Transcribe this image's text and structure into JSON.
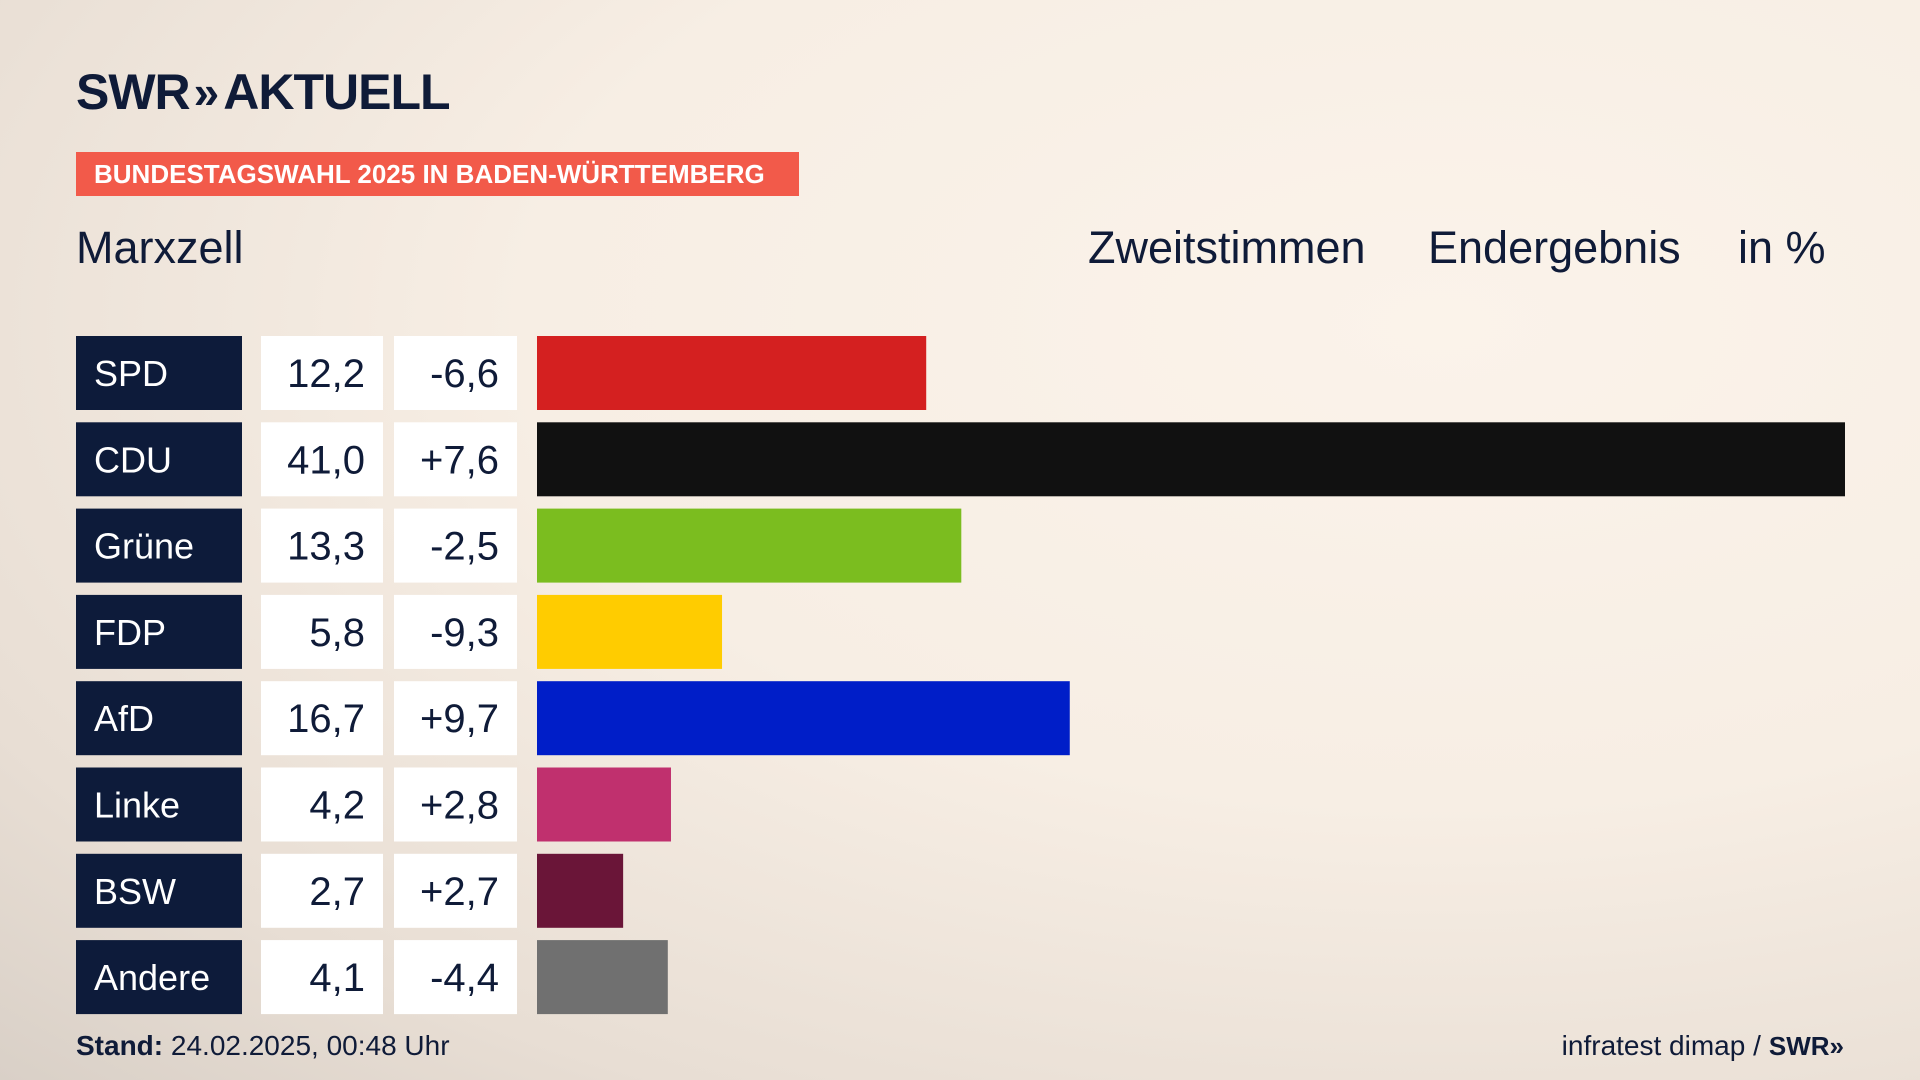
{
  "brand": {
    "name": "SWR",
    "chevrons": "»",
    "suffix": "AKTUELL"
  },
  "banner": "BUNDESTAGSWAHL 2025 IN BADEN-WÜRTTEMBERG",
  "place": "Marxzell",
  "header": {
    "vote_type": "Zweitstimmen",
    "status": "Endergebnis",
    "unit": "in %"
  },
  "footer": {
    "stand_label": "Stand:",
    "stand_value": "24.02.2025, 00:48 Uhr",
    "source": "infratest dimap /",
    "source_brand": "SWR»"
  },
  "colors": {
    "label_bg": "#0d1b3a",
    "banner": "#f25a4a"
  },
  "chart_data": {
    "type": "bar",
    "orientation": "horizontal",
    "categories": [
      "SPD",
      "CDU",
      "Grüne",
      "FDP",
      "AfD",
      "Linke",
      "BSW",
      "Andere"
    ],
    "values": [
      12.2,
      41.0,
      13.3,
      5.8,
      16.7,
      4.2,
      2.7,
      4.1
    ],
    "value_labels": [
      "12,2",
      "41,0",
      "13,3",
      "5,8",
      "16,7",
      "4,2",
      "2,7",
      "4,1"
    ],
    "changes": [
      "-6,6",
      "+7,6",
      "-2,5",
      "-9,3",
      "+9,7",
      "+2,8",
      "+2,7",
      "-4,4"
    ],
    "colors": [
      "#d42020",
      "#111111",
      "#7bbd1f",
      "#ffcc00",
      "#001ec8",
      "#c0306e",
      "#6a1538",
      "#707070"
    ],
    "xlim": [
      0,
      41.0
    ]
  }
}
